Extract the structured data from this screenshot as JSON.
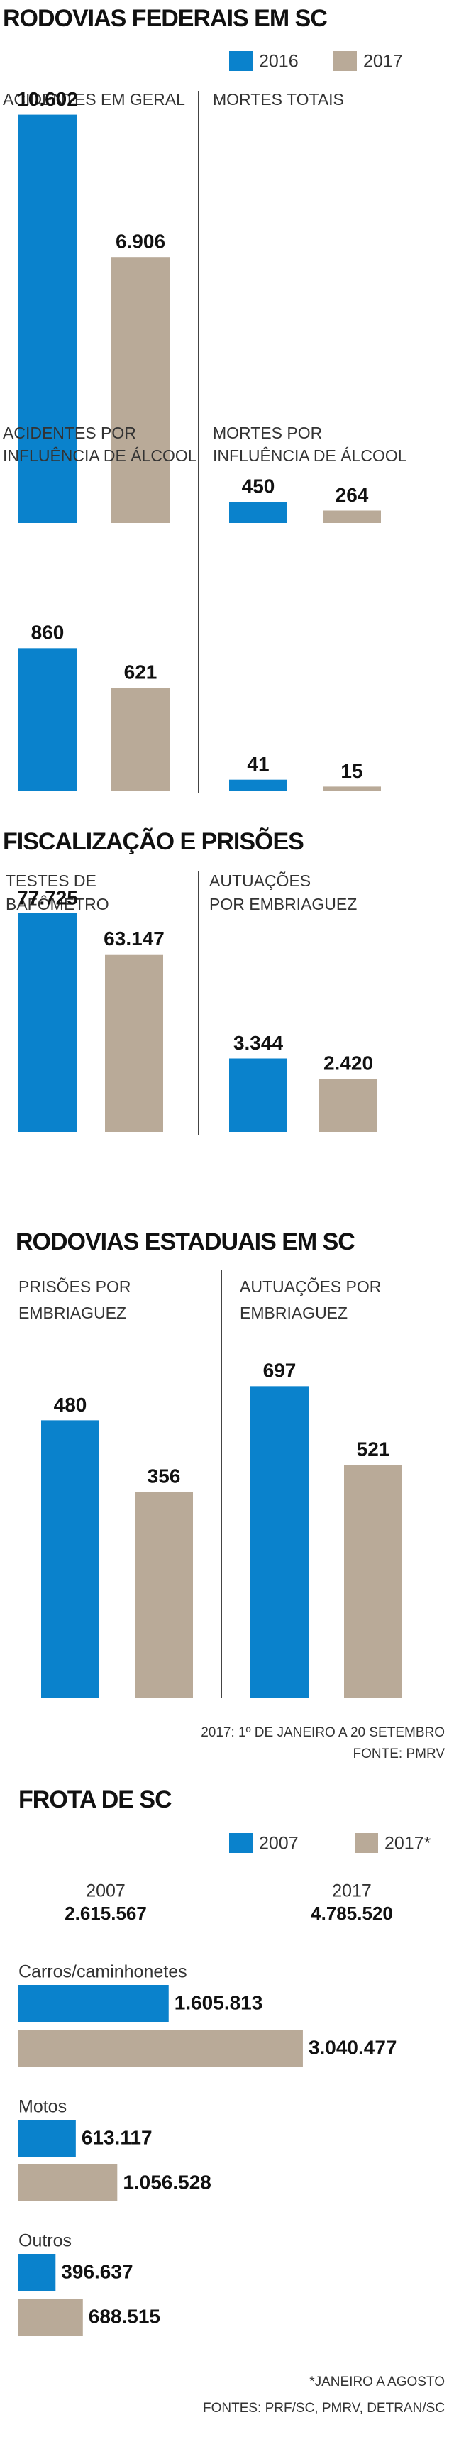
{
  "sections": [
    {
      "title": "RODOVIAS FEDERAIS EM SC",
      "legend": [
        {
          "name": "2016",
          "color": "#0a82cc"
        },
        {
          "name": "2017",
          "color": "#b9aa98"
        }
      ]
    },
    {
      "title": "FISCALIZAÇÃO E PRISÕES"
    },
    {
      "title": "RODOVIAS ESTADUAIS EM SC",
      "notes": [
        "2017: 1º DE JANEIRO A 20 SETEMBRO",
        "FONTE: PMRV"
      ]
    },
    {
      "title": "FROTA DE SC",
      "notes": [
        "*JANEIRO A AGOSTO",
        "FONTES: PRF/SC, PMRV, DETRAN/SC"
      ]
    }
  ],
  "chart_data": [
    {
      "type": "bar",
      "title": [
        "ACIDENTES EM GERAL"
      ],
      "values": [
        10602,
        6906
      ],
      "value_labels": [
        "10.602",
        "6.906"
      ],
      "colors": [
        "#0a82cc",
        "#b9aa98"
      ],
      "ylim": [
        0,
        11000
      ]
    },
    {
      "type": "bar",
      "title": [
        "MORTES TOTAIS"
      ],
      "values": [
        450,
        264
      ],
      "value_labels": [
        "450",
        "264"
      ],
      "colors": [
        "#0a82cc",
        "#b9aa98"
      ],
      "ylim": [
        0,
        9000
      ]
    },
    {
      "type": "bar",
      "title": [
        "ACIDENTES POR",
        "INFLUÊNCIA DE ÁLCOOL"
      ],
      "values": [
        860,
        621
      ],
      "value_labels": [
        "860",
        "621"
      ],
      "colors": [
        "#0a82cc",
        "#b9aa98"
      ],
      "ylim": [
        0,
        960
      ]
    },
    {
      "type": "bar",
      "title": [
        "MORTES POR",
        "INFLUÊNCIA DE ÁLCOOL"
      ],
      "values": [
        41,
        15
      ],
      "value_labels": [
        "41",
        "15"
      ],
      "colors": [
        "#0a82cc",
        "#b9aa98"
      ],
      "ylim": [
        0,
        600
      ]
    },
    {
      "type": "bar",
      "title": [
        "TESTES DE",
        "BAFÔMETRO"
      ],
      "values": [
        77725,
        63147
      ],
      "value_labels": [
        "77.725",
        "63.147"
      ],
      "colors": [
        "#0a82cc",
        "#b9aa98"
      ],
      "ylim": [
        0,
        82000
      ]
    },
    {
      "type": "bar",
      "title": [
        "AUTUAÇÕES",
        "POR EMBRIAGUEZ"
      ],
      "values": [
        3344,
        2420
      ],
      "value_labels": [
        "3.344",
        "2.420"
      ],
      "colors": [
        "#0a82cc",
        "#b9aa98"
      ],
      "ylim": [
        0,
        10500
      ]
    },
    {
      "type": "bar",
      "title": [
        "PRISÕES POR",
        "EMBRIAGUEZ"
      ],
      "values": [
        480,
        356
      ],
      "value_labels": [
        "480",
        "356"
      ],
      "colors": [
        "#0a82cc",
        "#b9aa98"
      ],
      "ylim": [
        0,
        580
      ]
    },
    {
      "type": "bar",
      "title": [
        "AUTUAÇÕES POR",
        "EMBRIAGUEZ"
      ],
      "values": [
        697,
        521
      ],
      "value_labels": [
        "697",
        "521"
      ],
      "colors": [
        "#0a82cc",
        "#b9aa98"
      ],
      "ylim": [
        0,
        750
      ]
    },
    {
      "type": "barh",
      "categories": [
        "Carros/caminhonetes",
        "Motos",
        "Outros"
      ],
      "series": [
        {
          "name": "2007",
          "color": "#0a82cc",
          "values": [
            1605813,
            613117,
            396637
          ],
          "value_labels": [
            "1.605.813",
            "613.117",
            "396.637"
          ]
        },
        {
          "name": "2017*",
          "color": "#b9aa98",
          "values": [
            3040477,
            1056528,
            688515
          ],
          "value_labels": [
            "3.040.477",
            "1.056.528",
            "688.515"
          ]
        }
      ],
      "totals": [
        {
          "label": "2007",
          "value": 2615567,
          "value_label": "2.615.567"
        },
        {
          "label": "2017",
          "value": 4785520,
          "value_label": "4.785.520"
        }
      ],
      "xlim": [
        0,
        4550000
      ]
    }
  ]
}
